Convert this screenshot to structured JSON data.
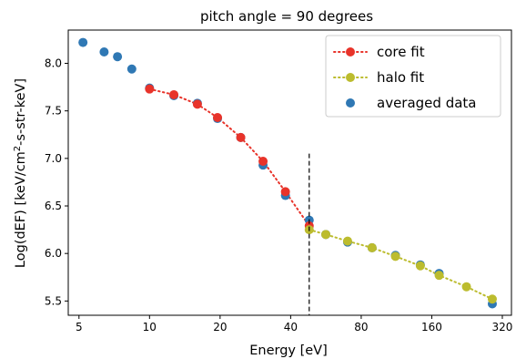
{
  "chart_data": {
    "type": "scatter",
    "title": "pitch angle = 90 degrees",
    "xlabel": "Energy [eV]",
    "ylabel_parts": {
      "before": "Log(dEF) [keV/cm",
      "sup": "2",
      "after": "-s-str-keV]"
    },
    "x_scale": "log2",
    "xlim": [
      4.5,
      350
    ],
    "ylim": [
      5.35,
      8.35
    ],
    "xticks": [
      5,
      10,
      20,
      40,
      80,
      160,
      320
    ],
    "yticks": [
      5.5,
      6.0,
      6.5,
      7.0,
      7.5,
      8.0
    ],
    "ytick_labels": [
      "5.5",
      "6.0",
      "6.5",
      "7.0",
      "7.5",
      "8.0"
    ],
    "vline_x": 48,
    "vline_y_range": [
      5.3,
      7.05
    ],
    "legend_position": "top-right",
    "colors": {
      "core": "#e8332a",
      "halo": "#bcbc2e",
      "averaged": "#2f78b4"
    },
    "series": [
      {
        "name": "core fit",
        "style": "dotted-line-markers",
        "x": [
          10,
          12.7,
          16,
          19.5,
          24.5,
          30.5,
          38,
          48
        ],
        "y": [
          7.73,
          7.67,
          7.57,
          7.43,
          7.22,
          6.97,
          6.65,
          6.29
        ]
      },
      {
        "name": "halo fit",
        "style": "dotted-line-markers",
        "x": [
          48,
          56.5,
          70,
          89,
          112,
          143,
          172,
          225,
          290
        ],
        "y": [
          6.25,
          6.2,
          6.13,
          6.06,
          5.97,
          5.87,
          5.77,
          5.65,
          5.52
        ]
      },
      {
        "name": "averaged data",
        "style": "markers",
        "x": [
          5.2,
          6.4,
          7.3,
          8.4,
          10,
          12.7,
          16,
          19.5,
          24.5,
          30.5,
          38,
          48,
          56.5,
          70,
          89,
          112,
          143,
          172,
          290
        ],
        "y": [
          8.22,
          8.12,
          8.07,
          7.94,
          7.74,
          7.66,
          7.58,
          7.42,
          7.22,
          6.93,
          6.61,
          6.35,
          6.2,
          6.12,
          6.06,
          5.98,
          5.88,
          5.79,
          5.47
        ]
      }
    ]
  }
}
